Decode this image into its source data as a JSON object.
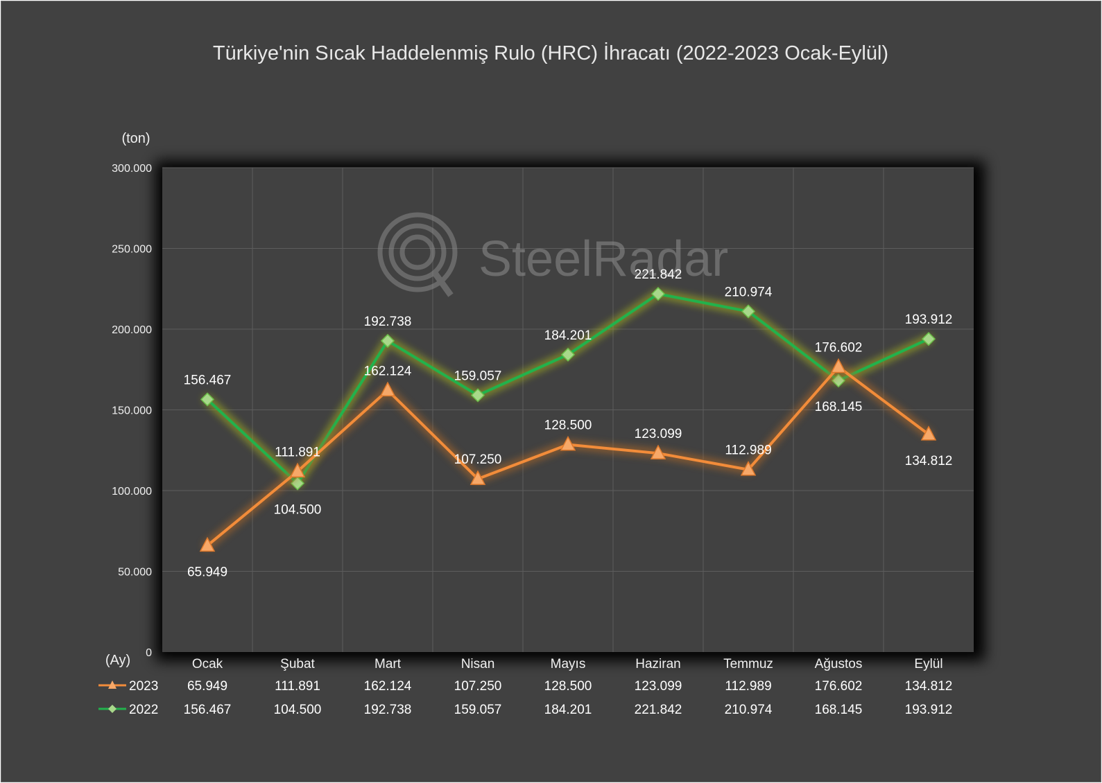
{
  "chart_data": {
    "type": "line",
    "title": "Türkiye'nin Sıcak Haddelenmiş Rulo (HRC) İhracatı (2022-2023 Ocak-Eylül)",
    "ylabel": "(ton)",
    "xlabel": "(Ay)",
    "categories": [
      "Ocak",
      "Şubat",
      "Mart",
      "Nisan",
      "Mayıs",
      "Haziran",
      "Temmuz",
      "Ağustos",
      "Eylül"
    ],
    "ylim": [
      0,
      300000
    ],
    "yticks": [
      0,
      50000,
      100000,
      150000,
      200000,
      250000,
      300000
    ],
    "ytick_labels": [
      "0",
      "50.000",
      "100.000",
      "150.000",
      "200.000",
      "250.000",
      "300.000"
    ],
    "grid": true,
    "legend": "data-table-bottom",
    "series": [
      {
        "name": "2023",
        "color": "#f28c3a",
        "marker": "triangle",
        "values": [
          65949,
          111891,
          162124,
          107250,
          128500,
          123099,
          112989,
          176602,
          134812
        ],
        "labels": [
          "65.949",
          "111.891",
          "162.124",
          "107.250",
          "128.500",
          "123.099",
          "112.989",
          "176.602",
          "134.812"
        ]
      },
      {
        "name": "2022",
        "color": "#22b24c",
        "marker": "diamond",
        "values": [
          156467,
          104500,
          192738,
          159057,
          184201,
          221842,
          210974,
          168145,
          193912
        ],
        "labels": [
          "156.467",
          "104.500",
          "192.738",
          "159.057",
          "184.201",
          "221.842",
          "210.974",
          "168.145",
          "193.912"
        ]
      }
    ]
  },
  "watermark": "SteelRadar"
}
